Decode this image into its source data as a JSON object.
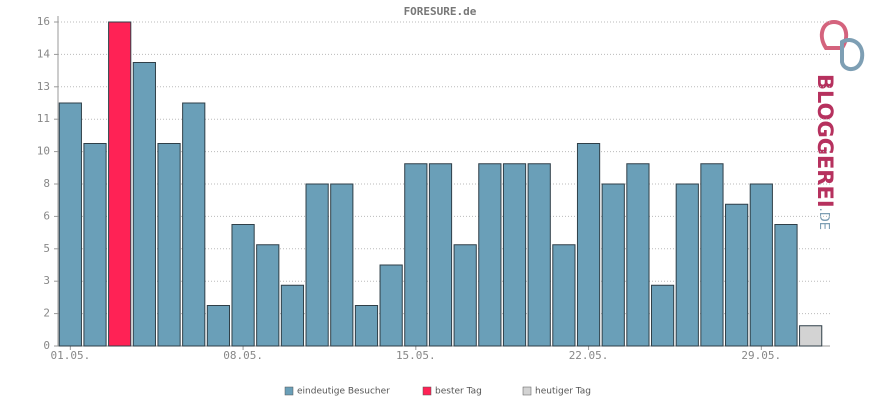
{
  "chart_data": {
    "type": "bar",
    "title": "FORESURE.de",
    "categories": [
      "01.05.",
      null,
      null,
      null,
      null,
      null,
      null,
      "08.05.",
      null,
      null,
      null,
      null,
      null,
      null,
      "15.05.",
      null,
      null,
      null,
      null,
      null,
      null,
      "22.05.",
      null,
      null,
      null,
      null,
      null,
      null,
      "29.05.",
      null,
      null
    ],
    "series": [
      {
        "name": "eindeutige Besucher",
        "color": "#6a9fb8",
        "values": [
          12,
          10,
          null,
          14,
          10,
          12,
          2,
          6,
          5,
          3,
          8,
          8,
          2,
          4,
          9,
          9,
          5,
          9,
          9,
          9,
          5,
          10,
          8,
          9,
          3,
          8,
          9,
          7,
          8,
          6,
          null
        ]
      },
      {
        "name": "bester Tag",
        "color": "#ff2255",
        "values": [
          null,
          null,
          16,
          null,
          null,
          null,
          null,
          null,
          null,
          null,
          null,
          null,
          null,
          null,
          null,
          null,
          null,
          null,
          null,
          null,
          null,
          null,
          null,
          null,
          null,
          null,
          null,
          null,
          null,
          null,
          null
        ]
      },
      {
        "name": "heutiger Tag",
        "color": "#d3d3d3",
        "values": [
          null,
          null,
          null,
          null,
          null,
          null,
          null,
          null,
          null,
          null,
          null,
          null,
          null,
          null,
          null,
          null,
          null,
          null,
          null,
          null,
          null,
          null,
          null,
          null,
          null,
          null,
          null,
          null,
          null,
          null,
          1
        ]
      }
    ],
    "ylim": [
      0,
      16
    ],
    "yticks": [
      0,
      {
        "value": 1.6,
        "label": "2"
      },
      {
        "value": 3.2,
        "label": "3"
      },
      {
        "value": 4.8,
        "label": "5"
      },
      {
        "value": 6.4,
        "label": "6"
      },
      8,
      {
        "value": 9.6,
        "label": "10"
      },
      {
        "value": 11.2,
        "label": "11"
      },
      {
        "value": 12.8,
        "label": "13"
      },
      {
        "value": 14.4,
        "label": "14"
      },
      16
    ],
    "grid": true
  },
  "logo": {
    "text": "BLOGGEREI",
    "suffix": ".DE"
  }
}
